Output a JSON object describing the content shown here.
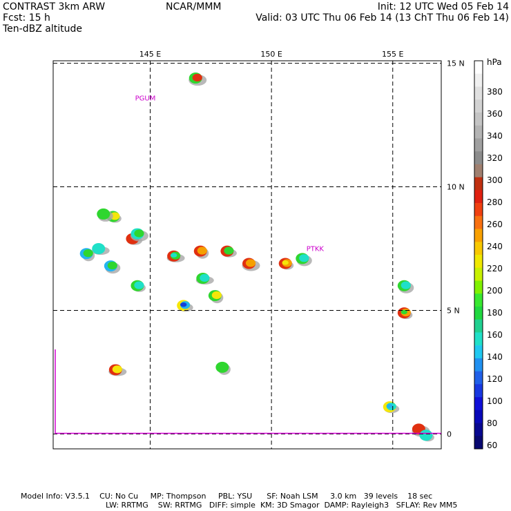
{
  "header": {
    "model": "CONTRAST  3km ARW",
    "fcst": "Fcst:   15 h",
    "field": "Ten-dBZ altitude",
    "org": "NCAR/MMM",
    "init": "Init: 12 UTC Wed 05 Feb 14",
    "valid": "Valid: 03 UTC Thu 06 Feb 14 (13 ChT Thu 06 Feb 14)"
  },
  "map": {
    "lon_range": [
      141,
      157
    ],
    "lat_range": [
      -0.6,
      15.1
    ],
    "lon_ticks": [
      {
        "value": 145,
        "label": "145 E"
      },
      {
        "value": 150,
        "label": "150 E"
      },
      {
        "value": 155,
        "label": "155 E"
      }
    ],
    "lat_ticks": [
      {
        "value": 15,
        "label": "15 N"
      },
      {
        "value": 10,
        "label": "10 N"
      },
      {
        "value": 5,
        "label": "5 N"
      },
      {
        "value": 0,
        "label": "0"
      }
    ],
    "stations": [
      {
        "name": "PGUM",
        "lon": 144.8,
        "lat": 13.5
      },
      {
        "name": "PTKK",
        "lon": 151.8,
        "lat": 7.4
      }
    ],
    "boundary_color": "#d400d4",
    "cells": [
      {
        "lon": 143.5,
        "lat": 8.8,
        "colors": [
          "#2fd62f",
          "#f5e60a"
        ]
      },
      {
        "lon": 143.1,
        "lat": 8.9,
        "colors": [
          "#2fd62f"
        ]
      },
      {
        "lon": 142.9,
        "lat": 7.5,
        "colors": [
          "#1fe0c8"
        ]
      },
      {
        "lon": 142.4,
        "lat": 7.3,
        "colors": [
          "#24b4f0",
          "#2fd62f"
        ]
      },
      {
        "lon": 144.3,
        "lat": 7.9,
        "colors": [
          "#e03010"
        ]
      },
      {
        "lon": 144.5,
        "lat": 8.1,
        "colors": [
          "#1fe0c8",
          "#2fd62f"
        ]
      },
      {
        "lon": 144.5,
        "lat": 6.0,
        "colors": [
          "#2fd62f",
          "#1fe0c8"
        ]
      },
      {
        "lon": 143.4,
        "lat": 6.8,
        "colors": [
          "#24b4f0",
          "#2fd62f"
        ]
      },
      {
        "lon": 146.0,
        "lat": 7.2,
        "colors": [
          "#e03010",
          "#2fd62f",
          "#1fe0c8"
        ]
      },
      {
        "lon": 147.1,
        "lat": 7.4,
        "colors": [
          "#e03010",
          "#f5a000"
        ]
      },
      {
        "lon": 148.2,
        "lat": 7.4,
        "colors": [
          "#e03010",
          "#2fd62f"
        ]
      },
      {
        "lon": 149.1,
        "lat": 6.9,
        "colors": [
          "#e03010",
          "#f5a000"
        ]
      },
      {
        "lon": 150.6,
        "lat": 6.9,
        "colors": [
          "#e03010",
          "#f5a000",
          "#f5e60a"
        ]
      },
      {
        "lon": 151.3,
        "lat": 7.1,
        "colors": [
          "#2fd62f",
          "#1fe0c8"
        ]
      },
      {
        "lon": 147.2,
        "lat": 6.3,
        "colors": [
          "#2fd62f",
          "#1fe0c8"
        ]
      },
      {
        "lon": 147.7,
        "lat": 5.6,
        "colors": [
          "#2fd62f",
          "#f5e60a"
        ]
      },
      {
        "lon": 146.4,
        "lat": 5.2,
        "colors": [
          "#f5e60a",
          "#24b4f0",
          "#1440d8"
        ]
      },
      {
        "lon": 146.9,
        "lat": 14.4,
        "colors": [
          "#2fd62f",
          "#e03010"
        ]
      },
      {
        "lon": 155.5,
        "lat": 4.9,
        "colors": [
          "#e03010",
          "#f5a000",
          "#2fd62f"
        ]
      },
      {
        "lon": 155.5,
        "lat": 6.0,
        "colors": [
          "#2fd62f",
          "#1fe0c8"
        ]
      },
      {
        "lon": 143.6,
        "lat": 2.6,
        "colors": [
          "#e03010",
          "#f5e60a"
        ]
      },
      {
        "lon": 148.0,
        "lat": 2.7,
        "colors": [
          "#2fd62f"
        ]
      },
      {
        "lon": 154.9,
        "lat": 1.1,
        "colors": [
          "#f5e60a",
          "#1fe0c8",
          "#24b4f0"
        ]
      },
      {
        "lon": 156.1,
        "lat": 0.2,
        "colors": [
          "#e03010"
        ]
      },
      {
        "lon": 156.4,
        "lat": -0.05,
        "colors": [
          "#1fe0c8"
        ]
      }
    ]
  },
  "colorbar": {
    "unit": "hPa",
    "labels": [
      "380",
      "360",
      "340",
      "320",
      "300",
      "280",
      "260",
      "240",
      "220",
      "200",
      "180",
      "160",
      "140",
      "120",
      "100",
      "80",
      "60"
    ],
    "colors": [
      "#ffffff",
      "#f0f0f0",
      "#e0e0e0",
      "#d2d2d2",
      "#c4c4c4",
      "#b4b4b4",
      "#a0a0a0",
      "#8c8c8c",
      "#a08070",
      "#c03010",
      "#e02010",
      "#f04010",
      "#f87010",
      "#f8a000",
      "#f8c800",
      "#f0e800",
      "#c8f000",
      "#80f000",
      "#38e830",
      "#20d840",
      "#20d090",
      "#20e0c8",
      "#20c8f0",
      "#2090f0",
      "#2060e8",
      "#1838e0",
      "#1010d8",
      "#0808b8",
      "#080890",
      "#080870"
    ]
  },
  "footer": {
    "line1": [
      "Model Info: V3.5.1",
      "CU: No Cu",
      "MP: Thompson",
      "PBL: YSU",
      "SF: Noah LSM",
      "3.0 km",
      "39 levels",
      "18 sec"
    ],
    "line2": [
      "LW: RRTMG",
      "SW: RRTMG",
      "DIFF: simple",
      "KM: 3D Smagor",
      "DAMP: Rayleigh3",
      "SFLAY: Rev MM5"
    ]
  }
}
